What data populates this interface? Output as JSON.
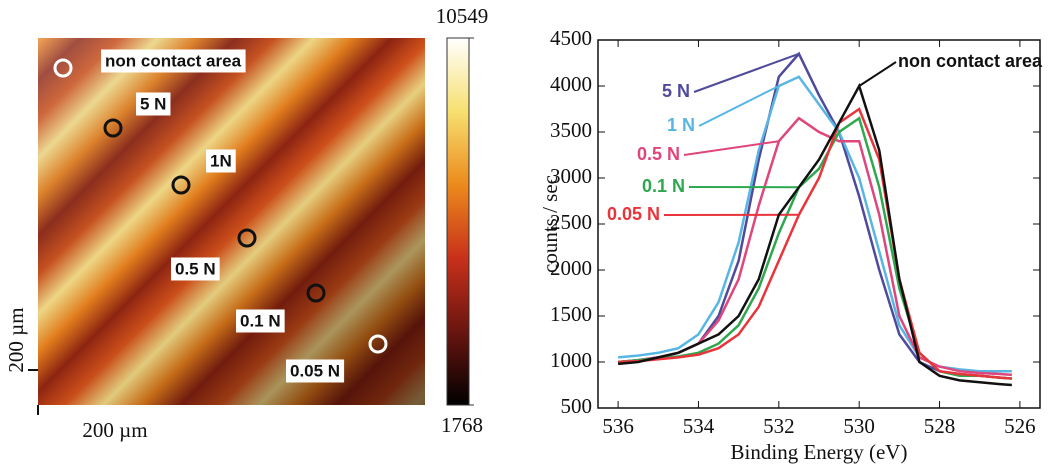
{
  "chart_data": [
    {
      "type": "heatmap",
      "zlim": [
        1768,
        10549
      ],
      "zticks": [
        1768,
        10549
      ],
      "scale_x_label": "200 µm",
      "scale_y_label": "200 µm",
      "annotations": [
        "non contact area",
        "5 N",
        "1N",
        "0.5 N",
        "0.1 N",
        "0.05 N"
      ]
    },
    {
      "type": "line",
      "x_label": "Binding Energy (eV)",
      "y_label": "counts / sec",
      "x": [
        536,
        535.5,
        535,
        534.5,
        534,
        533.5,
        533,
        532.5,
        532,
        531.5,
        531,
        530.5,
        530,
        529.5,
        529,
        528.5,
        528,
        527.5,
        527,
        526.5,
        526.2
      ],
      "xlim": [
        536.5,
        525.5
      ],
      "xticks": [
        536,
        534,
        532,
        530,
        528,
        526
      ],
      "ylim": [
        500,
        4500
      ],
      "yticks": [
        500,
        1000,
        1500,
        2000,
        2500,
        3000,
        3500,
        4000,
        4500
      ],
      "series": [
        {
          "name": "5 N",
          "color": "#4f4a9c",
          "values": [
            1000,
            1020,
            1050,
            1100,
            1200,
            1500,
            2100,
            3200,
            4100,
            4350,
            3900,
            3500,
            2800,
            2000,
            1300,
            1000,
            900,
            870,
            850,
            830,
            820
          ]
        },
        {
          "name": "1 N",
          "color": "#58b6e2",
          "values": [
            1050,
            1070,
            1100,
            1150,
            1300,
            1650,
            2300,
            3300,
            4000,
            4100,
            3800,
            3500,
            3000,
            2200,
            1400,
            1050,
            950,
            920,
            900,
            900,
            900
          ]
        },
        {
          "name": "0.5 N",
          "color": "#e0457b",
          "values": [
            1000,
            1020,
            1050,
            1100,
            1200,
            1450,
            1900,
            2700,
            3400,
            3650,
            3500,
            3400,
            3400,
            2600,
            1500,
            1050,
            950,
            900,
            880,
            870,
            860
          ]
        },
        {
          "name": "0.1 N",
          "color": "#2ea84f",
          "values": [
            1000,
            1020,
            1040,
            1060,
            1100,
            1200,
            1400,
            1800,
            2400,
            2900,
            3100,
            3500,
            3650,
            2900,
            1800,
            1100,
            900,
            850,
            850,
            830,
            820
          ]
        },
        {
          "name": "0.05 N",
          "color": "#e8343a",
          "values": [
            1000,
            1010,
            1030,
            1050,
            1080,
            1150,
            1300,
            1600,
            2100,
            2600,
            3000,
            3600,
            3750,
            3200,
            1900,
            1100,
            900,
            870,
            850,
            830,
            820
          ]
        },
        {
          "name": "non contact area",
          "color": "#111111",
          "values": [
            980,
            1000,
            1050,
            1100,
            1200,
            1300,
            1500,
            1900,
            2600,
            2900,
            3200,
            3600,
            4000,
            3300,
            1900,
            1000,
            850,
            800,
            780,
            760,
            750
          ]
        }
      ]
    }
  ]
}
